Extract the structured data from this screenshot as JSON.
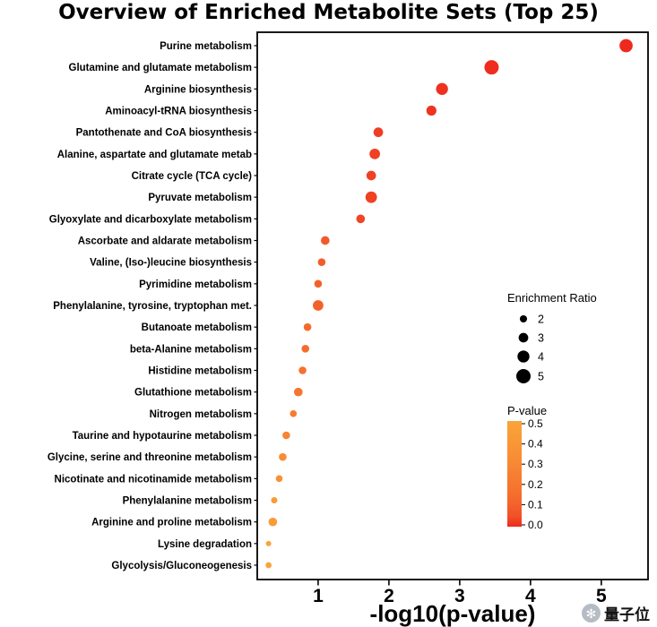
{
  "title": "Overview of Enriched Metabolite Sets (Top 25)",
  "watermark": {
    "text": "量子位",
    "icon": "snowflake-icon"
  },
  "colors": {
    "low_p": "#ee2a1e",
    "high_p": "#faa43a",
    "panel_border": "#000000",
    "legend_dot": "#000000",
    "text": "#000000"
  },
  "chart_data": {
    "type": "scatter",
    "title": "Overview of Enriched Metabolite Sets (Top 25)",
    "xlabel": "-log10(p-value)",
    "x_ticks": [
      1,
      2,
      3,
      4,
      5
    ],
    "x_range": [
      0.14,
      5.66
    ],
    "grid": false,
    "legend_position": "inside-right",
    "rows": [
      {
        "label": "Purine metabolism",
        "x": 5.35,
        "ratio": 4.5,
        "p": 4e-06
      },
      {
        "label": "Glutamine and glutamate metabolism",
        "x": 3.45,
        "ratio": 5.0,
        "p": 0.00035
      },
      {
        "label": "Arginine biosynthesis",
        "x": 2.75,
        "ratio": 4.0,
        "p": 0.0018
      },
      {
        "label": "Aminoacyl-tRNA biosynthesis",
        "x": 2.6,
        "ratio": 3.2,
        "p": 0.0025
      },
      {
        "label": "Pantothenate and CoA biosynthesis",
        "x": 1.85,
        "ratio": 3.0,
        "p": 0.014
      },
      {
        "label": "Alanine, aspartate and glutamate metab",
        "x": 1.8,
        "ratio": 3.4,
        "p": 0.016
      },
      {
        "label": "Citrate cycle (TCA cycle)",
        "x": 1.75,
        "ratio": 3.0,
        "p": 0.018
      },
      {
        "label": "Pyruvate metabolism",
        "x": 1.75,
        "ratio": 3.8,
        "p": 0.018
      },
      {
        "label": "Glyoxylate and dicarboxylate metabolism",
        "x": 1.6,
        "ratio": 2.6,
        "p": 0.025
      },
      {
        "label": "Ascorbate and aldarate metabolism",
        "x": 1.1,
        "ratio": 2.6,
        "p": 0.079
      },
      {
        "label": "Valine, (Iso-)leucine biosynthesis",
        "x": 1.05,
        "ratio": 2.2,
        "p": 0.089
      },
      {
        "label": "Pyrimidine metabolism",
        "x": 1.0,
        "ratio": 2.2,
        "p": 0.1
      },
      {
        "label": "Phenylalanine, tyrosine, tryptophan met.",
        "x": 1.0,
        "ratio": 3.4,
        "p": 0.1
      },
      {
        "label": "Butanoate metabolism",
        "x": 0.85,
        "ratio": 2.2,
        "p": 0.14
      },
      {
        "label": "beta-Alanine metabolism",
        "x": 0.82,
        "ratio": 2.2,
        "p": 0.15
      },
      {
        "label": "Histidine metabolism",
        "x": 0.78,
        "ratio": 2.2,
        "p": 0.17
      },
      {
        "label": "Glutathione metabolism",
        "x": 0.72,
        "ratio": 2.6,
        "p": 0.19
      },
      {
        "label": "Nitrogen metabolism",
        "x": 0.65,
        "ratio": 1.8,
        "p": 0.22
      },
      {
        "label": "Taurine and hypotaurine metabolism",
        "x": 0.55,
        "ratio": 2.2,
        "p": 0.28
      },
      {
        "label": "Glycine, serine and threonine metabolism",
        "x": 0.5,
        "ratio": 2.2,
        "p": 0.32
      },
      {
        "label": "Nicotinate and nicotinamide metabolism",
        "x": 0.45,
        "ratio": 1.8,
        "p": 0.35
      },
      {
        "label": "Phenylalanine metabolism",
        "x": 0.38,
        "ratio": 1.6,
        "p": 0.42
      },
      {
        "label": "Arginine and proline metabolism",
        "x": 0.36,
        "ratio": 2.6,
        "p": 0.44
      },
      {
        "label": "Lysine degradation",
        "x": 0.3,
        "ratio": 1.2,
        "p": 0.5
      },
      {
        "label": "Glycolysis/Gluconeogenesis",
        "x": 0.3,
        "ratio": 1.5,
        "p": 0.5
      }
    ],
    "size_legend": {
      "title": "Enrichment Ratio",
      "values": [
        2,
        3,
        4,
        5
      ]
    },
    "color_legend": {
      "title": "P-value",
      "tick_labels": [
        "0.5",
        "0.4",
        "0.3",
        "0.2",
        "0.1",
        "0.0"
      ],
      "tick_values": [
        0.5,
        0.4,
        0.3,
        0.2,
        0.1,
        0.0
      ]
    }
  }
}
